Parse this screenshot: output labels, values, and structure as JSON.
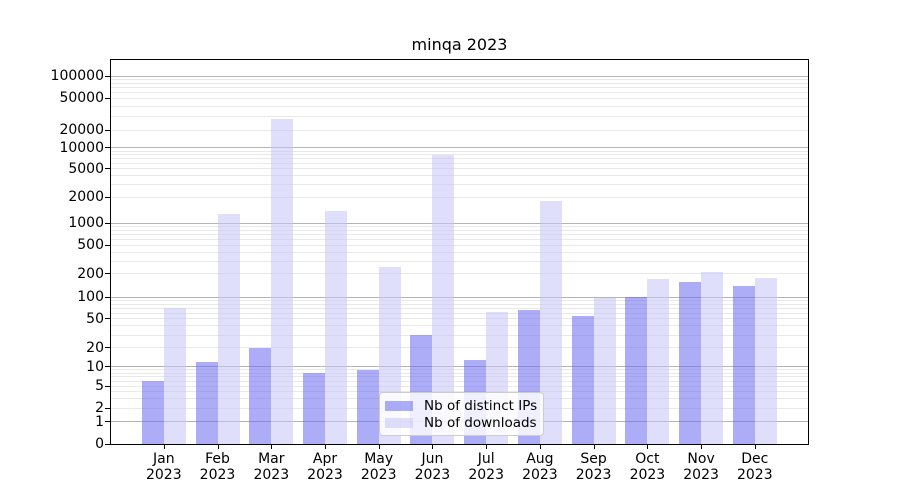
{
  "title": "minqa 2023",
  "chart_data": {
    "type": "bar",
    "title": "minqa 2023",
    "x": {
      "months": [
        "Jan",
        "Feb",
        "Mar",
        "Apr",
        "May",
        "Jun",
        "Jul",
        "Aug",
        "Sep",
        "Oct",
        "Nov",
        "Dec"
      ],
      "year": "2023"
    },
    "series": [
      {
        "name": "Nb of distinct IPs",
        "color": "rgba(106,106,240,0.55)",
        "values": [
          6,
          12,
          20,
          8,
          9,
          30,
          13,
          66,
          54,
          100,
          155,
          140
        ]
      },
      {
        "name": "Nb of downloads",
        "color": "rgba(196,196,248,0.55)",
        "values": [
          72,
          1300,
          28000,
          1400,
          250,
          8000,
          62,
          1800,
          98,
          170,
          210,
          175
        ]
      }
    ],
    "y_axis": {
      "scale": "symlog",
      "tick_values": [
        0,
        1,
        2,
        5,
        10,
        20,
        50,
        100,
        200,
        500,
        1000,
        2000,
        5000,
        10000,
        20000,
        50000,
        100000
      ],
      "tick_labels": [
        "0",
        "1",
        "2",
        "5",
        "10",
        "20",
        "50",
        "100",
        "200",
        "500",
        "1000",
        "2000",
        "5000",
        "10000",
        "20000",
        "50000",
        "100000"
      ]
    },
    "legend": {
      "entries": [
        "Nb of distinct IPs",
        "Nb of downloads"
      ],
      "position": "lower center"
    },
    "grid": {
      "major": true,
      "minor": true
    },
    "colors": {
      "major_grid": "#b4b4b4",
      "minor_grid": "#e9e9e9",
      "axis": "#000000"
    }
  }
}
